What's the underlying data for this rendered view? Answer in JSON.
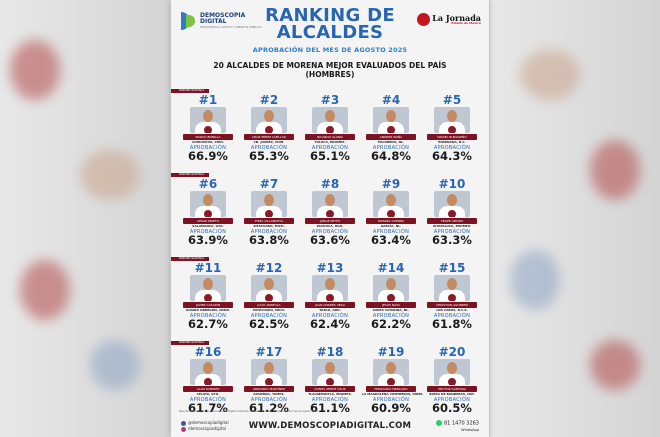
{
  "logo_left": {
    "line1": "DEMOSCOPIA",
    "line2": "DIGITAL",
    "tagline": "ESTADÍSTICA, DATOS Y OPINIÓN PÚBLICA"
  },
  "logo_right": {
    "mark": "",
    "name": "La Jornada",
    "sub": "Estado de México"
  },
  "title_line1": "RANKING DE",
  "title_line2": "ALCALDES",
  "subtitle": "APROBACIÓN DEL MES DE AGOSTO 2025",
  "headline_line1": "20 ALCALDES DE MORENA MEJOR EVALUADOS DEL PAÍS",
  "headline_line2": "(HOMBRES)",
  "ribbon_label": "RANKING NACIONAL",
  "approval_label": "APROBACIÓN",
  "mayors": [
    {
      "rank": "#1",
      "name": "MARCO BONILLA",
      "city": "CHIHUAHUA, CHIH.",
      "approval": "66.9%"
    },
    {
      "rank": "#2",
      "name": "CRUZ PÉREZ CUÉLLAR",
      "city": "CD. JUÁREZ, CHIH.",
      "approval": "65.3%"
    },
    {
      "rank": "#3",
      "name": "RICARDO ALANÍS",
      "city": "TOLUCA, EDOMEX.",
      "approval": "65.1%"
    },
    {
      "rank": "#4",
      "name": "ANDRÉS MAÑA",
      "city": "ESCOBEDO, NL.",
      "approval": "64.8%"
    },
    {
      "rank": "#5",
      "name": "ISMAEL BURGUEÑO",
      "city": "ENSENADA, B.C.",
      "approval": "64.3%"
    },
    {
      "rank": "#6",
      "name": "CÉSAR PRIETO",
      "city": "SALAMANCA, GTO.",
      "approval": "63.9%"
    },
    {
      "rank": "#7",
      "name": "FIDEL VILLANUEVA",
      "city": "ZITÁCUARO, MICH.",
      "approval": "63.8%"
    },
    {
      "rank": "#8",
      "name": "JORGE REYES",
      "city": "PACHUCA, HGO.",
      "approval": "63.6%"
    },
    {
      "rank": "#9",
      "name": "MANUEL GUERRA",
      "city": "GARCÍA, NL.",
      "approval": "63.4%"
    },
    {
      "rank": "#10",
      "name": "FELIPE ARVIZU",
      "city": "IXTAPALUCA, EDOMEX.",
      "approval": "63.3%"
    },
    {
      "rank": "#11",
      "name": "JAVIER CASARÍN",
      "city": "ÁLVARO OBREGÓN, CDMX.",
      "approval": "62.7%"
    },
    {
      "rank": "#12",
      "name": "JULIO ARREOLA",
      "city": "PÁTZCUARO, MICH.",
      "approval": "62.5%"
    },
    {
      "rank": "#13",
      "name": "JUAN ANDRÉS VEGA",
      "city": "TAXCO, GRO.",
      "approval": "62.4%"
    },
    {
      "rank": "#14",
      "name": "JESÚS NAVA",
      "city": "SANTA CATARINA, NL.",
      "approval": "62.2%"
    },
    {
      "rank": "#15",
      "name": "CHRISTIAN AGÚNDEZ",
      "city": "LOS CABOS, B.C.S.",
      "approval": "61.8%"
    },
    {
      "rank": "#16",
      "name": "ALAN RAMÍREZ",
      "city": "CELAYA, GTO.",
      "approval": "61.7%"
    },
    {
      "rank": "#17",
      "name": "ARMANDO MARTÍNEZ",
      "city": "ALTAMIRA, TAMPS.",
      "approval": "61.2%"
    },
    {
      "rank": "#18",
      "name": "DANIEL PÉREZ CRUZ",
      "city": "TLALNEPANTLA, EDOMEX.",
      "approval": "61.1%"
    },
    {
      "rank": "#19",
      "name": "FERNANDO MERCADO",
      "city": "LA MAGDALENA CONTRERAS, CDMX.",
      "approval": "60.9%"
    },
    {
      "rank": "#20",
      "name": "HÉCTOR SANTANA",
      "city": "BAHÍA DE BANDERAS, NAY.",
      "approval": "60.5%"
    }
  ],
  "footer": {
    "note": "Resultados obtenidos por Demoscopia Digital mediante encuesta en línea, aprobación del mes de agosto 2025.",
    "social1": "@demoscopiadigital",
    "social2": "/demoscopiadigital",
    "website": "WWW.DEMOSCOPIADIGITAL.COM",
    "phone": "81 1470 3263",
    "phone_label": "WhatsApp"
  },
  "colors": {
    "title_blue": "#2866b3",
    "ribbon_maroon": "#7c1322",
    "brand_green": "#7ec241"
  }
}
